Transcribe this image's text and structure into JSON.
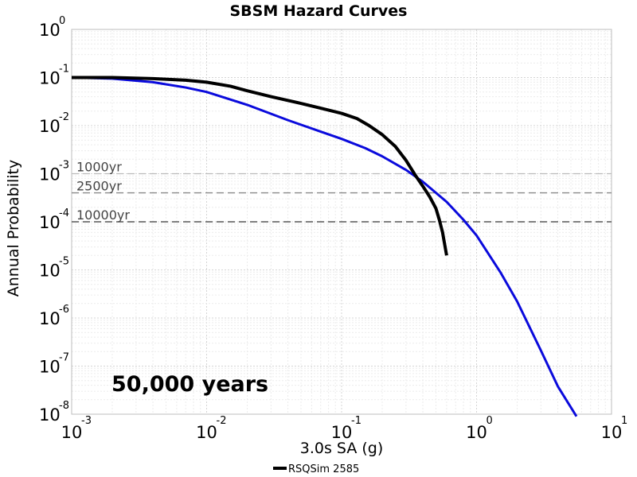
{
  "chart_data": {
    "type": "line",
    "title": "SBSM Hazard Curves",
    "xlabel": "3.0s SA (g)",
    "ylabel": "Annual Probability",
    "x_scale": "log",
    "y_scale": "log",
    "xlim": [
      0.001,
      10
    ],
    "ylim": [
      1e-08,
      1
    ],
    "x_ticks": [
      {
        "base": "10",
        "exp": "-3",
        "value": 0.001
      },
      {
        "base": "10",
        "exp": "-2",
        "value": 0.01
      },
      {
        "base": "10",
        "exp": "-1",
        "value": 0.1
      },
      {
        "base": "10",
        "exp": "0",
        "value": 1
      },
      {
        "base": "10",
        "exp": "1",
        "value": 10
      }
    ],
    "y_ticks": [
      {
        "base": "10",
        "exp": "0",
        "value": 1
      },
      {
        "base": "10",
        "exp": "-1",
        "value": 0.1
      },
      {
        "base": "10",
        "exp": "-2",
        "value": 0.01
      },
      {
        "base": "10",
        "exp": "-3",
        "value": 0.001
      },
      {
        "base": "10",
        "exp": "-4",
        "value": 0.0001
      },
      {
        "base": "10",
        "exp": "-5",
        "value": 1e-05
      },
      {
        "base": "10",
        "exp": "-6",
        "value": 1e-06
      },
      {
        "base": "10",
        "exp": "-7",
        "value": 1e-07
      },
      {
        "base": "10",
        "exp": "-8",
        "value": 1e-08
      }
    ],
    "grid": true,
    "series": [
      {
        "name": "RSQSim 2585",
        "color": "#000000",
        "x": [
          0.001,
          0.002,
          0.004,
          0.007,
          0.01,
          0.015,
          0.02,
          0.03,
          0.05,
          0.07,
          0.1,
          0.13,
          0.16,
          0.2,
          0.25,
          0.3,
          0.35,
          0.4,
          0.45,
          0.5,
          0.53,
          0.56,
          0.6
        ],
        "y": [
          0.1,
          0.1,
          0.095,
          0.088,
          0.08,
          0.066,
          0.053,
          0.04,
          0.029,
          0.023,
          0.018,
          0.014,
          0.01,
          0.0065,
          0.0037,
          0.0019,
          0.00095,
          0.00055,
          0.00033,
          0.00019,
          0.00011,
          6e-05,
          2e-05
        ]
      },
      {
        "name": "",
        "color": "#0a0adc",
        "x": [
          0.001,
          0.002,
          0.004,
          0.007,
          0.01,
          0.02,
          0.04,
          0.07,
          0.1,
          0.15,
          0.2,
          0.3,
          0.4,
          0.6,
          0.8,
          1,
          1.5,
          2,
          3,
          4,
          5.5
        ],
        "y": [
          0.1,
          0.095,
          0.08,
          0.062,
          0.05,
          0.027,
          0.013,
          0.0075,
          0.0053,
          0.0034,
          0.0023,
          0.0012,
          0.00068,
          0.00026,
          0.00011,
          5.2e-05,
          9e-06,
          2.2e-06,
          2.1e-07,
          3.8e-08,
          9e-09
        ]
      }
    ],
    "reference_lines": [
      {
        "label": "1000yr",
        "y": 0.001
      },
      {
        "label": "2500yr",
        "y": 0.0004
      },
      {
        "label": "10000yr",
        "y": 0.0001
      }
    ],
    "annotation": "50,000 years",
    "legend": {
      "placement": "bottom-center",
      "entries": [
        "RSQSim 2585"
      ]
    }
  }
}
